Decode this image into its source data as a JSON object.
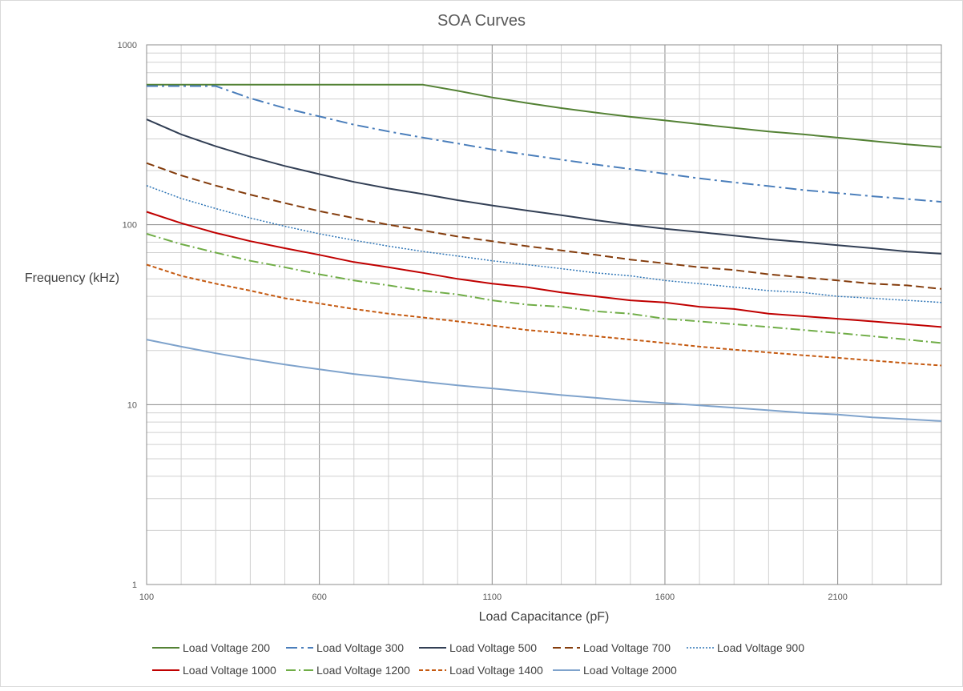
{
  "chart_data": {
    "type": "line",
    "title": "SOA Curves",
    "xlabel": "Load Capacitance (pF)",
    "ylabel": "Frequency (kHz)",
    "xlim": [
      100,
      2400
    ],
    "ylim": [
      1,
      1000
    ],
    "y_scale": "log",
    "x_ticks": [
      100,
      600,
      1100,
      1600,
      2100
    ],
    "y_ticks": [
      1,
      10,
      100,
      1000
    ],
    "grid": true,
    "legend_position": "bottom",
    "x": [
      100,
      200,
      300,
      400,
      500,
      600,
      700,
      800,
      900,
      1000,
      1100,
      1200,
      1300,
      1400,
      1500,
      1600,
      1700,
      1800,
      1900,
      2000,
      2100,
      2200,
      2300,
      2400
    ],
    "series": [
      {
        "name": "Load Voltage 200",
        "color": "#548235",
        "dash": "solid",
        "width": 2,
        "values": [
          600,
          600,
          600,
          600,
          600,
          600,
          600,
          600,
          600,
          555,
          510,
          475,
          445,
          420,
          398,
          380,
          362,
          345,
          330,
          318,
          305,
          292,
          280,
          270
        ]
      },
      {
        "name": "Load Voltage 300",
        "color": "#4A7EBB",
        "dash": "14,5,3,5",
        "width": 2,
        "values": [
          590,
          590,
          590,
          505,
          445,
          400,
          360,
          330,
          305,
          283,
          262,
          245,
          230,
          216,
          204,
          192,
          181,
          172,
          164,
          156,
          150,
          144,
          139,
          134
        ]
      },
      {
        "name": "Load Voltage 500",
        "color": "#323F55",
        "dash": "solid",
        "width": 2,
        "values": [
          385,
          318,
          273,
          239,
          212,
          191,
          173,
          159,
          148,
          137,
          128,
          120,
          113,
          106,
          100,
          95,
          91,
          87,
          83,
          80,
          77,
          74,
          71,
          69
        ]
      },
      {
        "name": "Load Voltage 700",
        "color": "#843C0C",
        "dash": "10,5",
        "width": 2,
        "values": [
          220,
          188,
          165,
          147,
          132,
          119,
          109,
          100,
          93,
          86,
          81,
          76,
          72,
          68,
          64,
          61,
          58,
          56,
          53,
          51,
          49,
          47,
          46,
          44
        ]
      },
      {
        "name": "Load Voltage 900",
        "color": "#2E75B6",
        "dash": "2,2",
        "width": 1.5,
        "values": [
          165,
          140,
          123,
          109,
          98,
          89,
          82,
          76,
          71,
          67,
          63,
          60,
          57,
          54,
          52,
          49,
          47,
          45,
          43,
          42,
          40,
          39,
          38,
          37
        ]
      },
      {
        "name": "Load Voltage 1000",
        "color": "#C00000",
        "dash": "solid",
        "width": 2,
        "values": [
          118,
          102,
          90,
          81,
          74,
          68,
          62,
          58,
          54,
          50,
          47,
          45,
          42,
          40,
          38,
          37,
          35,
          34,
          32,
          31,
          30,
          29,
          28,
          27
        ]
      },
      {
        "name": "Load Voltage 1200",
        "color": "#70AD47",
        "dash": "12,4,2,4",
        "width": 2,
        "values": [
          89,
          78,
          70,
          63,
          58,
          53,
          49,
          46,
          43,
          41,
          38,
          36,
          35,
          33,
          32,
          30,
          29,
          28,
          27,
          26,
          25,
          24,
          23,
          22
        ]
      },
      {
        "name": "Load Voltage 1400",
        "color": "#C55A11",
        "dash": "5,3",
        "width": 2,
        "values": [
          60,
          52,
          47,
          43,
          39,
          36.5,
          34,
          32,
          30.5,
          29,
          27.5,
          26,
          25,
          24,
          23,
          22,
          21,
          20.2,
          19.5,
          18.8,
          18.2,
          17.6,
          17,
          16.5
        ]
      },
      {
        "name": "Load Voltage 2000",
        "color": "#7FA3CC",
        "dash": "solid",
        "width": 2,
        "values": [
          23,
          21,
          19.3,
          17.9,
          16.7,
          15.7,
          14.8,
          14.1,
          13.4,
          12.8,
          12.3,
          11.8,
          11.3,
          10.9,
          10.5,
          10.2,
          9.9,
          9.6,
          9.3,
          9,
          8.8,
          8.5,
          8.3,
          8.1
        ]
      }
    ]
  }
}
